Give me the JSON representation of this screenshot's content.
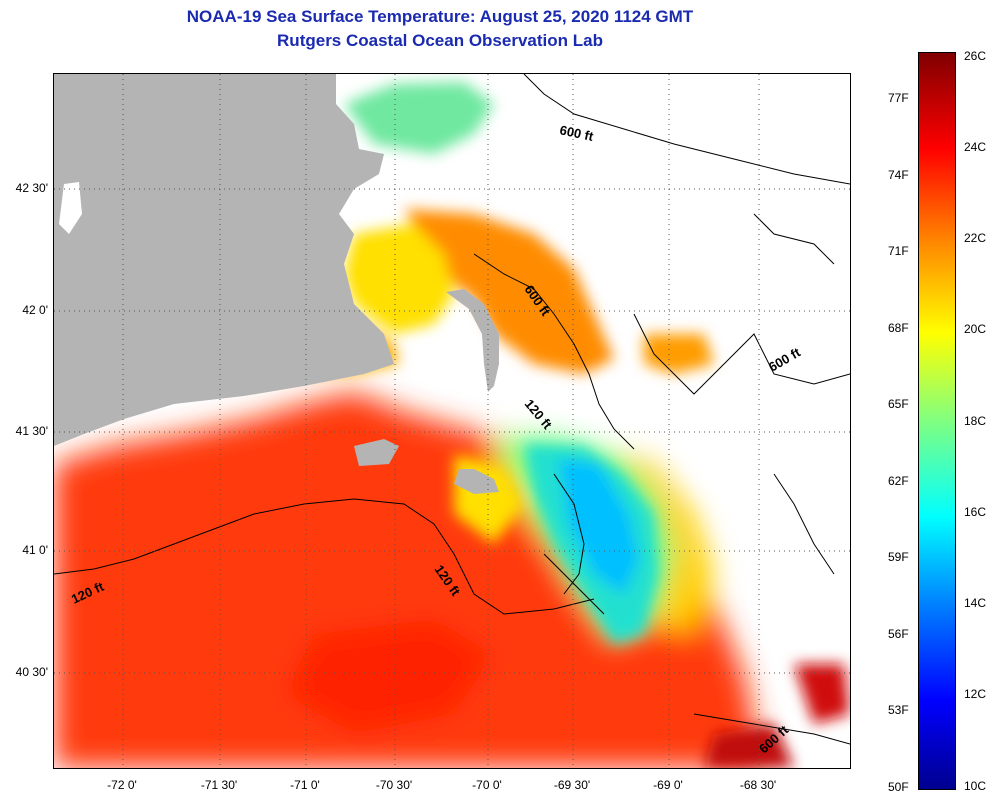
{
  "title": "NOAA-19 Sea Surface Temperature:  August 25, 2020 1124 GMT",
  "subtitle": "Rutgers Coastal Ocean Observation Lab",
  "colors": {
    "land": "#b4b4b4",
    "no_data": "#ffffff",
    "title": "#1b2bb0"
  },
  "axes": {
    "lon_labels": [
      "-72 0'",
      "-71 30'",
      "-71 0'",
      "-70 30'",
      "-70 0'",
      "-69 30'",
      "-69 0'",
      "-68 30'"
    ],
    "lat_labels": [
      "42 30'",
      "42 0'",
      "41 30'",
      "41 0'",
      "40 30'"
    ]
  },
  "contours": [
    {
      "label": "600 ft"
    },
    {
      "label": "600 ft"
    },
    {
      "label": "600 ft"
    },
    {
      "label": "600 ft"
    },
    {
      "label": "120 ft"
    },
    {
      "label": "120 ft"
    },
    {
      "label": "120 ft"
    }
  ],
  "colorbar": {
    "min_c": 10,
    "max_c": 26,
    "fahrenheit": [
      "77F",
      "74F",
      "71F",
      "68F",
      "65F",
      "62F",
      "59F",
      "56F",
      "53F",
      "50F"
    ],
    "celsius": [
      "26C",
      "24C",
      "22C",
      "20C",
      "18C",
      "16C",
      "14C",
      "12C",
      "10C"
    ]
  }
}
